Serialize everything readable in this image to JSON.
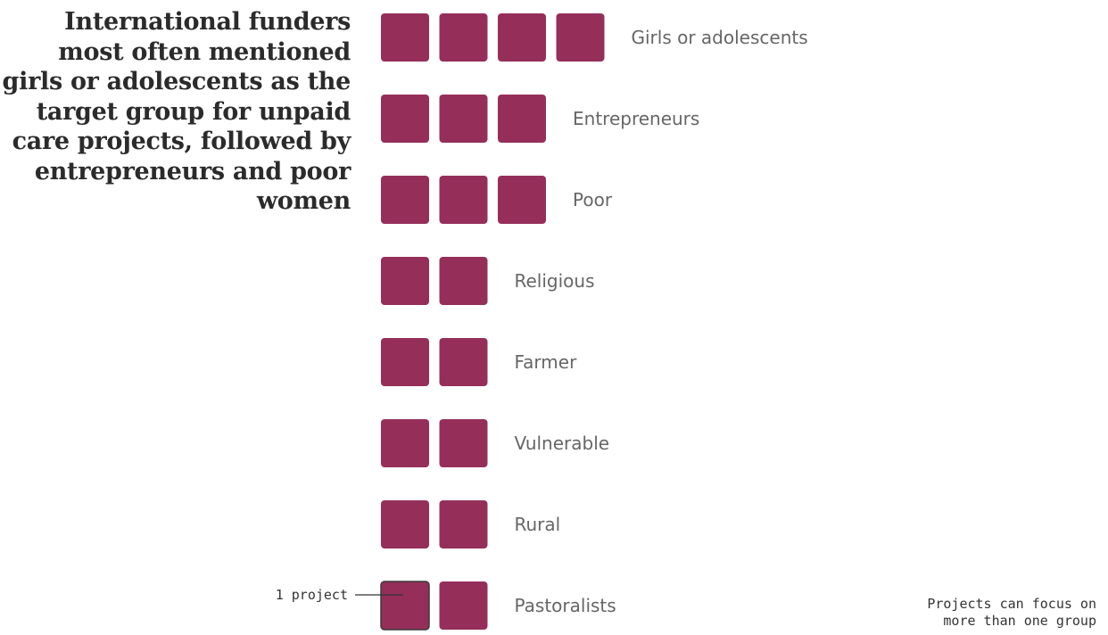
{
  "title": "International funders most often mentioned girls or adolescents as the target group for unpaid care projects, followed by entrepreneurs and poor women",
  "legend": {
    "unit_label": "1 project"
  },
  "note": [
    "Projects can focus on",
    "more than one group"
  ],
  "colors": {
    "square": "#952f5a",
    "legend_stroke": "#3a3a3a"
  },
  "chart_data": {
    "type": "table",
    "unit": "projects",
    "categories": [
      "Girls or adolescents",
      "Entrepreneurs",
      "Poor",
      "Religious",
      "Farmer",
      "Vulnerable",
      "Rural",
      "Pastoralists"
    ],
    "values": [
      4,
      3,
      3,
      2,
      2,
      2,
      2,
      2
    ]
  }
}
